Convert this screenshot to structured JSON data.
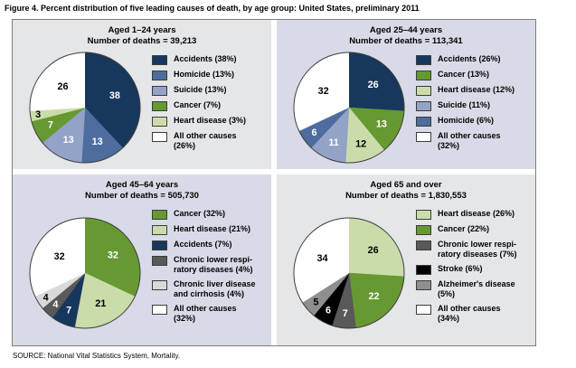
{
  "title": "Figure 4. Percent distribution of five leading causes of death, by age group: United States, preliminary 2011",
  "source": "SOURCE: National Vital Statistics System, Mortality.",
  "colors": {
    "box_border": "#7d7d7d",
    "panel_gray": "#e5e6e8",
    "panel_lavender": "#d8dbe7",
    "pie_outline": "#3c3c3c",
    "accidents_navy": "#17375d",
    "homicide_blue": "#4e6d9e",
    "suicide_lightblue": "#93a2c7",
    "cancer_green": "#669932",
    "heart_lightgreen": "#cbdcab",
    "clrd_darkgray": "#595959",
    "liver_lightgray": "#d9d9d9",
    "stroke_black": "#000000",
    "alzheimers_gray": "#8f8f8f",
    "other_white": "#ffffff"
  },
  "chart_data": [
    {
      "type": "pie",
      "title": "Aged 1–24 years",
      "subtitle": "Number of deaths = 39,213",
      "total_deaths": "39,213",
      "panel_bg": "#e5e6e8",
      "slices": [
        {
          "label": "Accidents",
          "pct": 38,
          "color": "#17375d",
          "value_label": "38",
          "label_color": "#ffffff",
          "label_r": 0.58,
          "legend": "Accidents (38%)"
        },
        {
          "label": "Homicide",
          "pct": 13,
          "color": "#4e6d9e",
          "value_label": "13",
          "label_color": "#ffffff",
          "label_r": 0.66,
          "legend": "Homicide (13%)"
        },
        {
          "label": "Suicide",
          "pct": 13,
          "color": "#93a2c7",
          "value_label": "13",
          "label_color": "#ffffff",
          "label_r": 0.66,
          "legend": "Suicide (13%)"
        },
        {
          "label": "Cancer",
          "pct": 7,
          "color": "#669932",
          "value_label": "7",
          "label_color": "#ffffff",
          "label_r": 0.7,
          "legend": "Cancer (7%)"
        },
        {
          "label": "Heart disease",
          "pct": 3,
          "color": "#cbdcab",
          "value_label": "3",
          "label_color": "#000000",
          "label_r": 0.86,
          "legend": "Heart disease (3%)"
        },
        {
          "label": "All other causes",
          "pct": 26,
          "color": "#ffffff",
          "value_label": "26",
          "label_color": "#000000",
          "label_r": 0.55,
          "legend": "All other causes\n(26%)"
        }
      ]
    },
    {
      "type": "pie",
      "title": "Aged 25–44 years",
      "subtitle": "Number of deaths = 113,341",
      "total_deaths": "113,341",
      "panel_bg": "#d8dbe7",
      "slices": [
        {
          "label": "Accidents",
          "pct": 26,
          "color": "#17375d",
          "value_label": "26",
          "label_color": "#ffffff",
          "label_r": 0.6,
          "legend": "Accidents (26%)"
        },
        {
          "label": "Cancer",
          "pct": 13,
          "color": "#669932",
          "value_label": "13",
          "label_color": "#ffffff",
          "label_r": 0.66,
          "legend": "Cancer (13%)"
        },
        {
          "label": "Heart disease",
          "pct": 12,
          "color": "#cbdcab",
          "value_label": "12",
          "label_color": "#000000",
          "label_r": 0.7,
          "legend": "Heart disease (12%)"
        },
        {
          "label": "Suicide",
          "pct": 11,
          "color": "#93a2c7",
          "value_label": "11",
          "label_color": "#ffffff",
          "label_r": 0.7,
          "legend": "Suicide (11%)"
        },
        {
          "label": "Homicide",
          "pct": 6,
          "color": "#4e6d9e",
          "value_label": "6",
          "label_color": "#ffffff",
          "label_r": 0.78,
          "legend": "Homicide (6%)"
        },
        {
          "label": "All other causes",
          "pct": 32,
          "color": "#ffffff",
          "value_label": "32",
          "label_color": "#000000",
          "label_r": 0.55,
          "legend": "All other causes\n(32%)"
        }
      ]
    },
    {
      "type": "pie",
      "title": "Aged 45–64 years",
      "subtitle": "Number of deaths = 505,730",
      "total_deaths": "505,730",
      "panel_bg": "#d8dbe7",
      "slices": [
        {
          "label": "Cancer",
          "pct": 32,
          "color": "#669932",
          "value_label": "32",
          "label_color": "#ffffff",
          "label_r": 0.6,
          "legend": "Cancer (32%)"
        },
        {
          "label": "Heart disease",
          "pct": 21,
          "color": "#cbdcab",
          "value_label": "21",
          "label_color": "#000000",
          "label_r": 0.62,
          "legend": "Heart disease (21%)"
        },
        {
          "label": "Accidents",
          "pct": 7,
          "color": "#17375d",
          "value_label": "7",
          "label_color": "#ffffff",
          "label_r": 0.74,
          "legend": "Accidents (7%)"
        },
        {
          "label": "Chronic lower respiratory diseases",
          "pct": 4,
          "color": "#595959",
          "value_label": "4",
          "label_color": "#ffffff",
          "label_r": 0.78,
          "legend": "Chronic lower respi-\nratory diseases (4%)"
        },
        {
          "label": "Chronic liver disease and cirrhosis",
          "pct": 4,
          "color": "#d9d9d9",
          "value_label": "4",
          "label_color": "#000000",
          "label_r": 0.84,
          "legend": "Chronic liver disease\nand cirrhosis (4%)"
        },
        {
          "label": "All other causes",
          "pct": 32,
          "color": "#ffffff",
          "value_label": "32",
          "label_color": "#000000",
          "label_r": 0.55,
          "legend": "All other causes\n(32%)"
        }
      ]
    },
    {
      "type": "pie",
      "title": "Aged 65 and over",
      "subtitle": "Number of deaths = 1,830,553",
      "total_deaths": "1,830,553",
      "panel_bg": "#e5e6e8",
      "slices": [
        {
          "label": "Heart disease",
          "pct": 26,
          "color": "#cbdcab",
          "value_label": "26",
          "label_color": "#000000",
          "label_r": 0.6,
          "legend": "Heart disease (26%)"
        },
        {
          "label": "Cancer",
          "pct": 22,
          "color": "#669932",
          "value_label": "22",
          "label_color": "#ffffff",
          "label_r": 0.62,
          "legend": "Cancer (22%)"
        },
        {
          "label": "Chronic lower respiratory diseases",
          "pct": 7,
          "color": "#595959",
          "value_label": "7",
          "label_color": "#ffffff",
          "label_r": 0.74,
          "legend": "Chronic lower respi-\nratory diseases (7%)"
        },
        {
          "label": "Stroke",
          "pct": 6,
          "color": "#000000",
          "value_label": "6",
          "label_color": "#ffffff",
          "label_r": 0.78,
          "legend": "Stroke (6%)"
        },
        {
          "label": "Alzheimer's disease",
          "pct": 5,
          "color": "#8f8f8f",
          "value_label": "5",
          "label_color": "#000000",
          "label_r": 0.8,
          "legend": "Alzheimer's disease\n(5%)"
        },
        {
          "label": "All other causes",
          "pct": 34,
          "color": "#ffffff",
          "value_label": "34",
          "label_color": "#000000",
          "label_r": 0.55,
          "legend": "All other causes\n(34%)"
        }
      ]
    }
  ]
}
